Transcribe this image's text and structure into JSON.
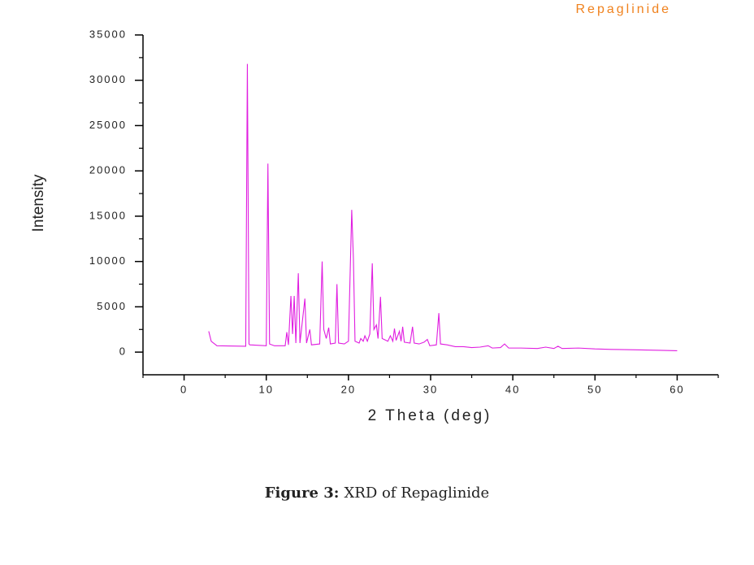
{
  "chart_data": {
    "type": "line",
    "x_label": "2 Theta (deg)",
    "y_label": "Intensity",
    "xlim": [
      -5,
      65
    ],
    "xticks": [
      0,
      10,
      20,
      30,
      40,
      50,
      60
    ],
    "xminorticks": [
      -5,
      5,
      15,
      25,
      35,
      45,
      55,
      65
    ],
    "ylim": [
      -2500,
      35000
    ],
    "yticks": [
      0,
      5000,
      10000,
      15000,
      20000,
      25000,
      30000,
      35000
    ],
    "yminorticks": [
      2500,
      7500,
      12500,
      17500,
      22500,
      27500,
      32500
    ],
    "legend": "top-right",
    "x": [
      3,
      3.3,
      4,
      7.5,
      7.7,
      7.9,
      8,
      10.0,
      10.2,
      10.4,
      11,
      12.3,
      12.5,
      12.7,
      13.0,
      13.2,
      13.4,
      13.6,
      13.9,
      14.1,
      14.7,
      14.9,
      15.3,
      15.5,
      16.5,
      16.8,
      17.0,
      17.3,
      17.6,
      17.8,
      18.4,
      18.6,
      18.8,
      19.5,
      20.0,
      20.4,
      20.6,
      20.8,
      21.3,
      21.5,
      21.8,
      22.0,
      22.3,
      22.6,
      22.9,
      23.1,
      23.4,
      23.6,
      23.9,
      24.1,
      24.8,
      25.1,
      25.4,
      25.6,
      25.8,
      26.2,
      26.4,
      26.6,
      26.8,
      27.5,
      27.8,
      28.0,
      28.6,
      29.2,
      29.6,
      29.9,
      30.7,
      31.0,
      31.2,
      32,
      33,
      34,
      35,
      36,
      37,
      37.5,
      38.5,
      39,
      39.5,
      41,
      43,
      44,
      45,
      45.5,
      46,
      48,
      50,
      52,
      55,
      58,
      60
    ],
    "series": [
      {
        "name": "Repaglinide",
        "color": "#e01ee0",
        "legend_color": "#f0821e",
        "values": [
          2300,
          1200,
          700,
          650,
          31800,
          900,
          800,
          700,
          20800,
          900,
          700,
          700,
          2200,
          800,
          6200,
          2000,
          6200,
          1000,
          8700,
          1000,
          5900,
          1000,
          2500,
          800,
          900,
          10000,
          2500,
          1500,
          2700,
          900,
          1000,
          7500,
          1000,
          900,
          1200,
          15700,
          10400,
          1200,
          1000,
          1500,
          1200,
          1800,
          1200,
          2000,
          9800,
          2500,
          3000,
          1500,
          6100,
          1500,
          1200,
          1800,
          1200,
          2600,
          1300,
          2300,
          1200,
          2800,
          1100,
          1000,
          2800,
          1000,
          900,
          1100,
          1400,
          700,
          800,
          4300,
          900,
          800,
          600,
          600,
          500,
          550,
          700,
          450,
          500,
          900,
          450,
          450,
          400,
          550,
          400,
          650,
          400,
          450,
          350,
          300,
          250,
          200,
          150
        ]
      }
    ]
  },
  "caption": {
    "label": "Figure 3:",
    "text": "XRD of Repaglinide"
  }
}
